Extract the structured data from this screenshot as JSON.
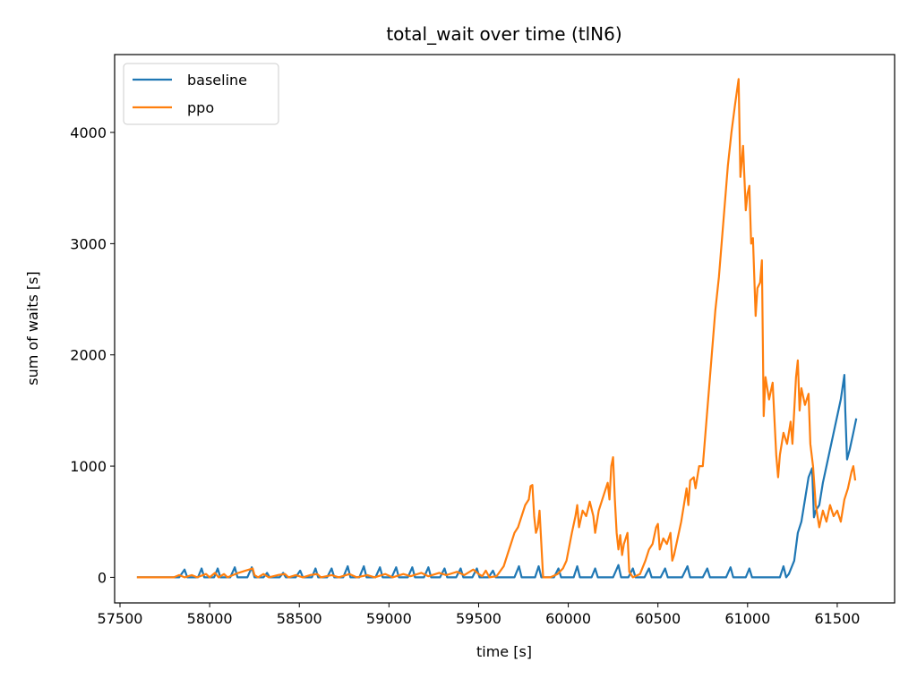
{
  "chart_data": {
    "type": "line",
    "title": "total_wait over time (tlN6)",
    "xlabel": "time [s]",
    "ylabel": "sum of waits [s]",
    "xlim": [
      57470,
      61820
    ],
    "ylim": [
      -230,
      4700
    ],
    "xticks": [
      57500,
      58000,
      58500,
      59000,
      59500,
      60000,
      60500,
      61000,
      61500
    ],
    "yticks": [
      0,
      1000,
      2000,
      3000,
      4000
    ],
    "grid": false,
    "legend_position": "top-left",
    "series": [
      {
        "name": "baseline",
        "color": "#1f77b4",
        "points": [
          [
            57600,
            0
          ],
          [
            57830,
            0
          ],
          [
            57860,
            70
          ],
          [
            57875,
            0
          ],
          [
            57935,
            0
          ],
          [
            57955,
            80
          ],
          [
            57970,
            0
          ],
          [
            58025,
            0
          ],
          [
            58045,
            80
          ],
          [
            58060,
            0
          ],
          [
            58115,
            0
          ],
          [
            58140,
            90
          ],
          [
            58155,
            0
          ],
          [
            58210,
            0
          ],
          [
            58235,
            90
          ],
          [
            58250,
            0
          ],
          [
            58300,
            0
          ],
          [
            58320,
            40
          ],
          [
            58335,
            0
          ],
          [
            58390,
            0
          ],
          [
            58410,
            40
          ],
          [
            58425,
            0
          ],
          [
            58480,
            0
          ],
          [
            58505,
            60
          ],
          [
            58520,
            0
          ],
          [
            58570,
            0
          ],
          [
            58590,
            80
          ],
          [
            58605,
            0
          ],
          [
            58655,
            0
          ],
          [
            58680,
            80
          ],
          [
            58695,
            0
          ],
          [
            58745,
            0
          ],
          [
            58770,
            100
          ],
          [
            58785,
            0
          ],
          [
            58835,
            0
          ],
          [
            58860,
            100
          ],
          [
            58875,
            0
          ],
          [
            58925,
            0
          ],
          [
            58950,
            90
          ],
          [
            58965,
            0
          ],
          [
            59015,
            0
          ],
          [
            59040,
            90
          ],
          [
            59055,
            0
          ],
          [
            59105,
            0
          ],
          [
            59130,
            90
          ],
          [
            59145,
            0
          ],
          [
            59195,
            0
          ],
          [
            59220,
            90
          ],
          [
            59235,
            0
          ],
          [
            59285,
            0
          ],
          [
            59310,
            80
          ],
          [
            59325,
            0
          ],
          [
            59375,
            0
          ],
          [
            59400,
            80
          ],
          [
            59415,
            0
          ],
          [
            59465,
            0
          ],
          [
            59490,
            80
          ],
          [
            59505,
            0
          ],
          [
            59555,
            0
          ],
          [
            59580,
            60
          ],
          [
            59595,
            0
          ],
          [
            59700,
            0
          ],
          [
            59725,
            100
          ],
          [
            59740,
            0
          ],
          [
            59815,
            0
          ],
          [
            59835,
            100
          ],
          [
            59850,
            0
          ],
          [
            59920,
            0
          ],
          [
            59945,
            80
          ],
          [
            59960,
            0
          ],
          [
            60030,
            0
          ],
          [
            60050,
            100
          ],
          [
            60065,
            0
          ],
          [
            60130,
            0
          ],
          [
            60150,
            80
          ],
          [
            60165,
            0
          ],
          [
            60250,
            0
          ],
          [
            60280,
            110
          ],
          [
            60295,
            0
          ],
          [
            60335,
            0
          ],
          [
            60360,
            80
          ],
          [
            60375,
            0
          ],
          [
            60425,
            0
          ],
          [
            60450,
            80
          ],
          [
            60465,
            0
          ],
          [
            60515,
            0
          ],
          [
            60540,
            80
          ],
          [
            60555,
            0
          ],
          [
            60635,
            0
          ],
          [
            60665,
            100
          ],
          [
            60680,
            0
          ],
          [
            60750,
            0
          ],
          [
            60775,
            80
          ],
          [
            60790,
            0
          ],
          [
            60880,
            0
          ],
          [
            60905,
            90
          ],
          [
            60920,
            0
          ],
          [
            60990,
            0
          ],
          [
            61010,
            80
          ],
          [
            61025,
            0
          ],
          [
            61180,
            0
          ],
          [
            61200,
            100
          ],
          [
            61215,
            0
          ],
          [
            61230,
            30
          ],
          [
            61260,
            150
          ],
          [
            61280,
            400
          ],
          [
            61300,
            500
          ],
          [
            61320,
            700
          ],
          [
            61340,
            900
          ],
          [
            61360,
            980
          ],
          [
            61370,
            540
          ],
          [
            61380,
            600
          ],
          [
            61400,
            650
          ],
          [
            61420,
            850
          ],
          [
            61440,
            1000
          ],
          [
            61460,
            1150
          ],
          [
            61480,
            1300
          ],
          [
            61500,
            1450
          ],
          [
            61520,
            1600
          ],
          [
            61540,
            1820
          ],
          [
            61545,
            1500
          ],
          [
            61555,
            1060
          ],
          [
            61570,
            1150
          ],
          [
            61590,
            1300
          ],
          [
            61605,
            1420
          ]
        ]
      },
      {
        "name": "ppo",
        "color": "#ff7f0e",
        "points": [
          [
            57600,
            0
          ],
          [
            57800,
            0
          ],
          [
            57830,
            20
          ],
          [
            57860,
            0
          ],
          [
            57900,
            20
          ],
          [
            57930,
            0
          ],
          [
            57980,
            30
          ],
          [
            58000,
            0
          ],
          [
            58030,
            40
          ],
          [
            58050,
            0
          ],
          [
            58080,
            30
          ],
          [
            58100,
            0
          ],
          [
            58160,
            40
          ],
          [
            58200,
            60
          ],
          [
            58240,
            80
          ],
          [
            58250,
            20
          ],
          [
            58270,
            0
          ],
          [
            58300,
            30
          ],
          [
            58330,
            0
          ],
          [
            58380,
            20
          ],
          [
            58420,
            30
          ],
          [
            58440,
            0
          ],
          [
            58480,
            20
          ],
          [
            58520,
            0
          ],
          [
            58560,
            20
          ],
          [
            58600,
            30
          ],
          [
            58620,
            0
          ],
          [
            58680,
            20
          ],
          [
            58720,
            0
          ],
          [
            58780,
            30
          ],
          [
            58820,
            0
          ],
          [
            58880,
            20
          ],
          [
            58920,
            0
          ],
          [
            58980,
            30
          ],
          [
            59020,
            0
          ],
          [
            59080,
            30
          ],
          [
            59120,
            10
          ],
          [
            59180,
            40
          ],
          [
            59220,
            10
          ],
          [
            59280,
            40
          ],
          [
            59320,
            20
          ],
          [
            59380,
            50
          ],
          [
            59420,
            20
          ],
          [
            59470,
            70
          ],
          [
            59500,
            30
          ],
          [
            59520,
            10
          ],
          [
            59540,
            60
          ],
          [
            59560,
            0
          ],
          [
            59600,
            10
          ],
          [
            59640,
            100
          ],
          [
            59660,
            200
          ],
          [
            59680,
            300
          ],
          [
            59700,
            400
          ],
          [
            59720,
            450
          ],
          [
            59740,
            550
          ],
          [
            59760,
            650
          ],
          [
            59780,
            700
          ],
          [
            59790,
            820
          ],
          [
            59800,
            830
          ],
          [
            59810,
            550
          ],
          [
            59820,
            400
          ],
          [
            59830,
            450
          ],
          [
            59840,
            600
          ],
          [
            59850,
            300
          ],
          [
            59860,
            0
          ],
          [
            59900,
            0
          ],
          [
            59940,
            30
          ],
          [
            59970,
            80
          ],
          [
            59990,
            150
          ],
          [
            60020,
            400
          ],
          [
            60040,
            550
          ],
          [
            60050,
            650
          ],
          [
            60060,
            450
          ],
          [
            60080,
            600
          ],
          [
            60100,
            550
          ],
          [
            60120,
            680
          ],
          [
            60140,
            550
          ],
          [
            60150,
            400
          ],
          [
            60170,
            600
          ],
          [
            60200,
            750
          ],
          [
            60220,
            850
          ],
          [
            60230,
            700
          ],
          [
            60240,
            1000
          ],
          [
            60250,
            1080
          ],
          [
            60260,
            700
          ],
          [
            60270,
            400
          ],
          [
            60280,
            250
          ],
          [
            60290,
            380
          ],
          [
            60300,
            200
          ],
          [
            60310,
            300
          ],
          [
            60330,
            400
          ],
          [
            60340,
            50
          ],
          [
            60360,
            0
          ],
          [
            60400,
            30
          ],
          [
            60430,
            150
          ],
          [
            60450,
            250
          ],
          [
            60470,
            300
          ],
          [
            60490,
            450
          ],
          [
            60500,
            480
          ],
          [
            60510,
            250
          ],
          [
            60530,
            350
          ],
          [
            60550,
            300
          ],
          [
            60570,
            400
          ],
          [
            60580,
            150
          ],
          [
            60590,
            200
          ],
          [
            60610,
            350
          ],
          [
            60630,
            500
          ],
          [
            60650,
            700
          ],
          [
            60660,
            800
          ],
          [
            60670,
            650
          ],
          [
            60680,
            870
          ],
          [
            60700,
            900
          ],
          [
            60710,
            800
          ],
          [
            60730,
            1000
          ],
          [
            60750,
            1000
          ],
          [
            60770,
            1400
          ],
          [
            60790,
            1800
          ],
          [
            60800,
            2000
          ],
          [
            60820,
            2400
          ],
          [
            60840,
            2700
          ],
          [
            60850,
            2900
          ],
          [
            60870,
            3300
          ],
          [
            60890,
            3700
          ],
          [
            60910,
            4000
          ],
          [
            60930,
            4250
          ],
          [
            60950,
            4480
          ],
          [
            60960,
            3600
          ],
          [
            60975,
            3880
          ],
          [
            60990,
            3300
          ],
          [
            61000,
            3450
          ],
          [
            61010,
            3520
          ],
          [
            61020,
            3000
          ],
          [
            61030,
            3050
          ],
          [
            61045,
            2350
          ],
          [
            61055,
            2600
          ],
          [
            61070,
            2650
          ],
          [
            61080,
            2850
          ],
          [
            61090,
            1450
          ],
          [
            61100,
            1800
          ],
          [
            61120,
            1600
          ],
          [
            61140,
            1750
          ],
          [
            61160,
            1100
          ],
          [
            61170,
            900
          ],
          [
            61180,
            1100
          ],
          [
            61200,
            1300
          ],
          [
            61220,
            1200
          ],
          [
            61240,
            1400
          ],
          [
            61250,
            1200
          ],
          [
            61270,
            1800
          ],
          [
            61280,
            1950
          ],
          [
            61290,
            1500
          ],
          [
            61300,
            1700
          ],
          [
            61320,
            1550
          ],
          [
            61340,
            1650
          ],
          [
            61350,
            1200
          ],
          [
            61365,
            1000
          ],
          [
            61380,
            650
          ],
          [
            61390,
            550
          ],
          [
            61400,
            450
          ],
          [
            61420,
            600
          ],
          [
            61440,
            500
          ],
          [
            61460,
            650
          ],
          [
            61480,
            550
          ],
          [
            61500,
            600
          ],
          [
            61520,
            500
          ],
          [
            61540,
            700
          ],
          [
            61560,
            800
          ],
          [
            61580,
            950
          ],
          [
            61590,
            1000
          ],
          [
            61600,
            880
          ]
        ]
      }
    ]
  }
}
